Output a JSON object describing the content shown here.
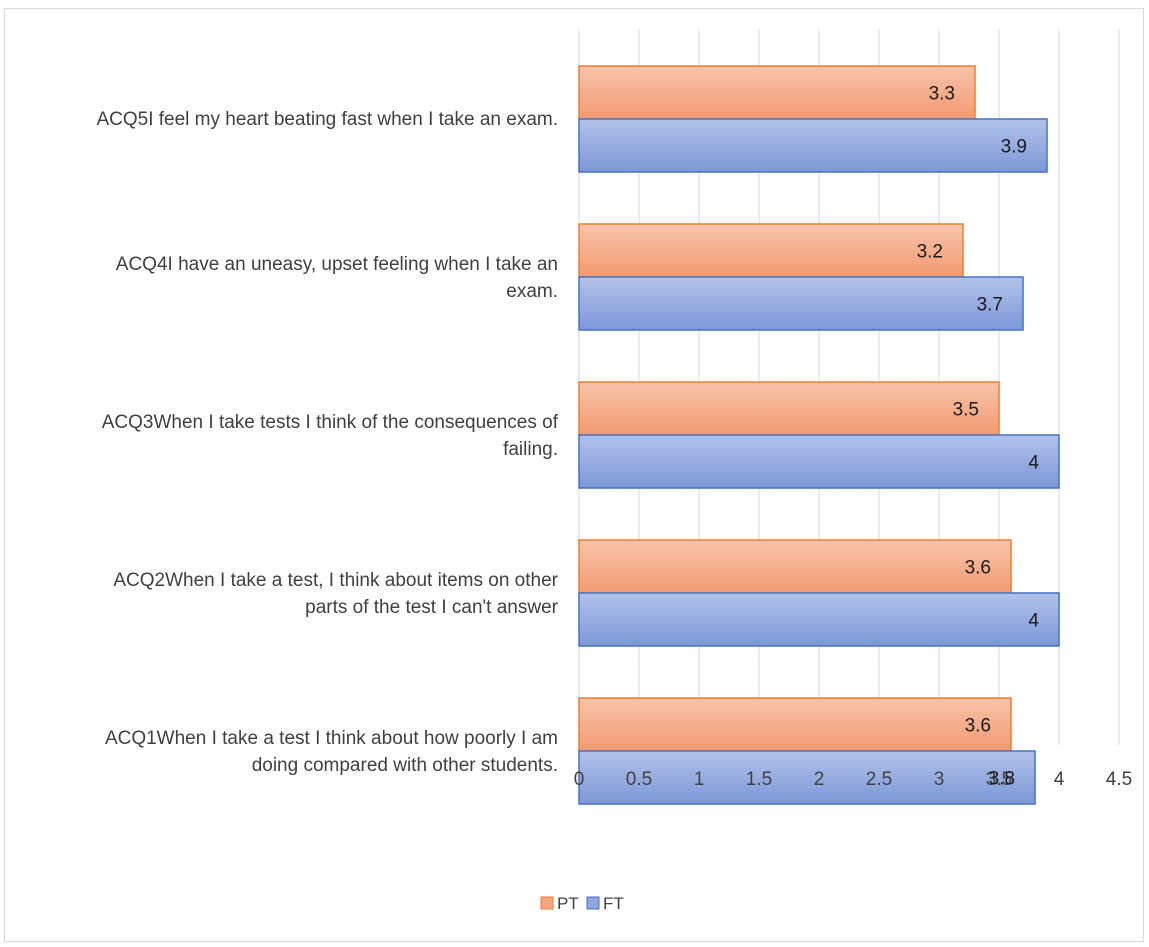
{
  "chart_data": {
    "type": "bar",
    "orientation": "horizontal",
    "categories": [
      "ACQ5I feel my heart beating fast when I take an exam.",
      "ACQ4I have an uneasy, upset feeling when I take an exam.",
      "ACQ3When I take tests I think of the consequences of failing.",
      "ACQ2When I take a test, I think about items on other parts of the test I can't answer",
      "ACQ1When I take a test I think about how poorly I am doing compared with other students."
    ],
    "series": [
      {
        "name": "PT",
        "values": [
          3.3,
          3.2,
          3.5,
          3.6,
          3.6
        ],
        "color": "#f4a682"
      },
      {
        "name": "FT",
        "values": [
          3.9,
          3.7,
          4,
          4,
          3.8
        ],
        "color": "#8fa7de"
      }
    ],
    "xlim": [
      0,
      4.5
    ],
    "xticks": [
      "0",
      "0.5",
      "1",
      "1.5",
      "2",
      "2.5",
      "3",
      "3.5",
      "4",
      "4.5"
    ],
    "grid": true,
    "legend": "bottom",
    "title": "",
    "xlabel": "",
    "ylabel": ""
  }
}
